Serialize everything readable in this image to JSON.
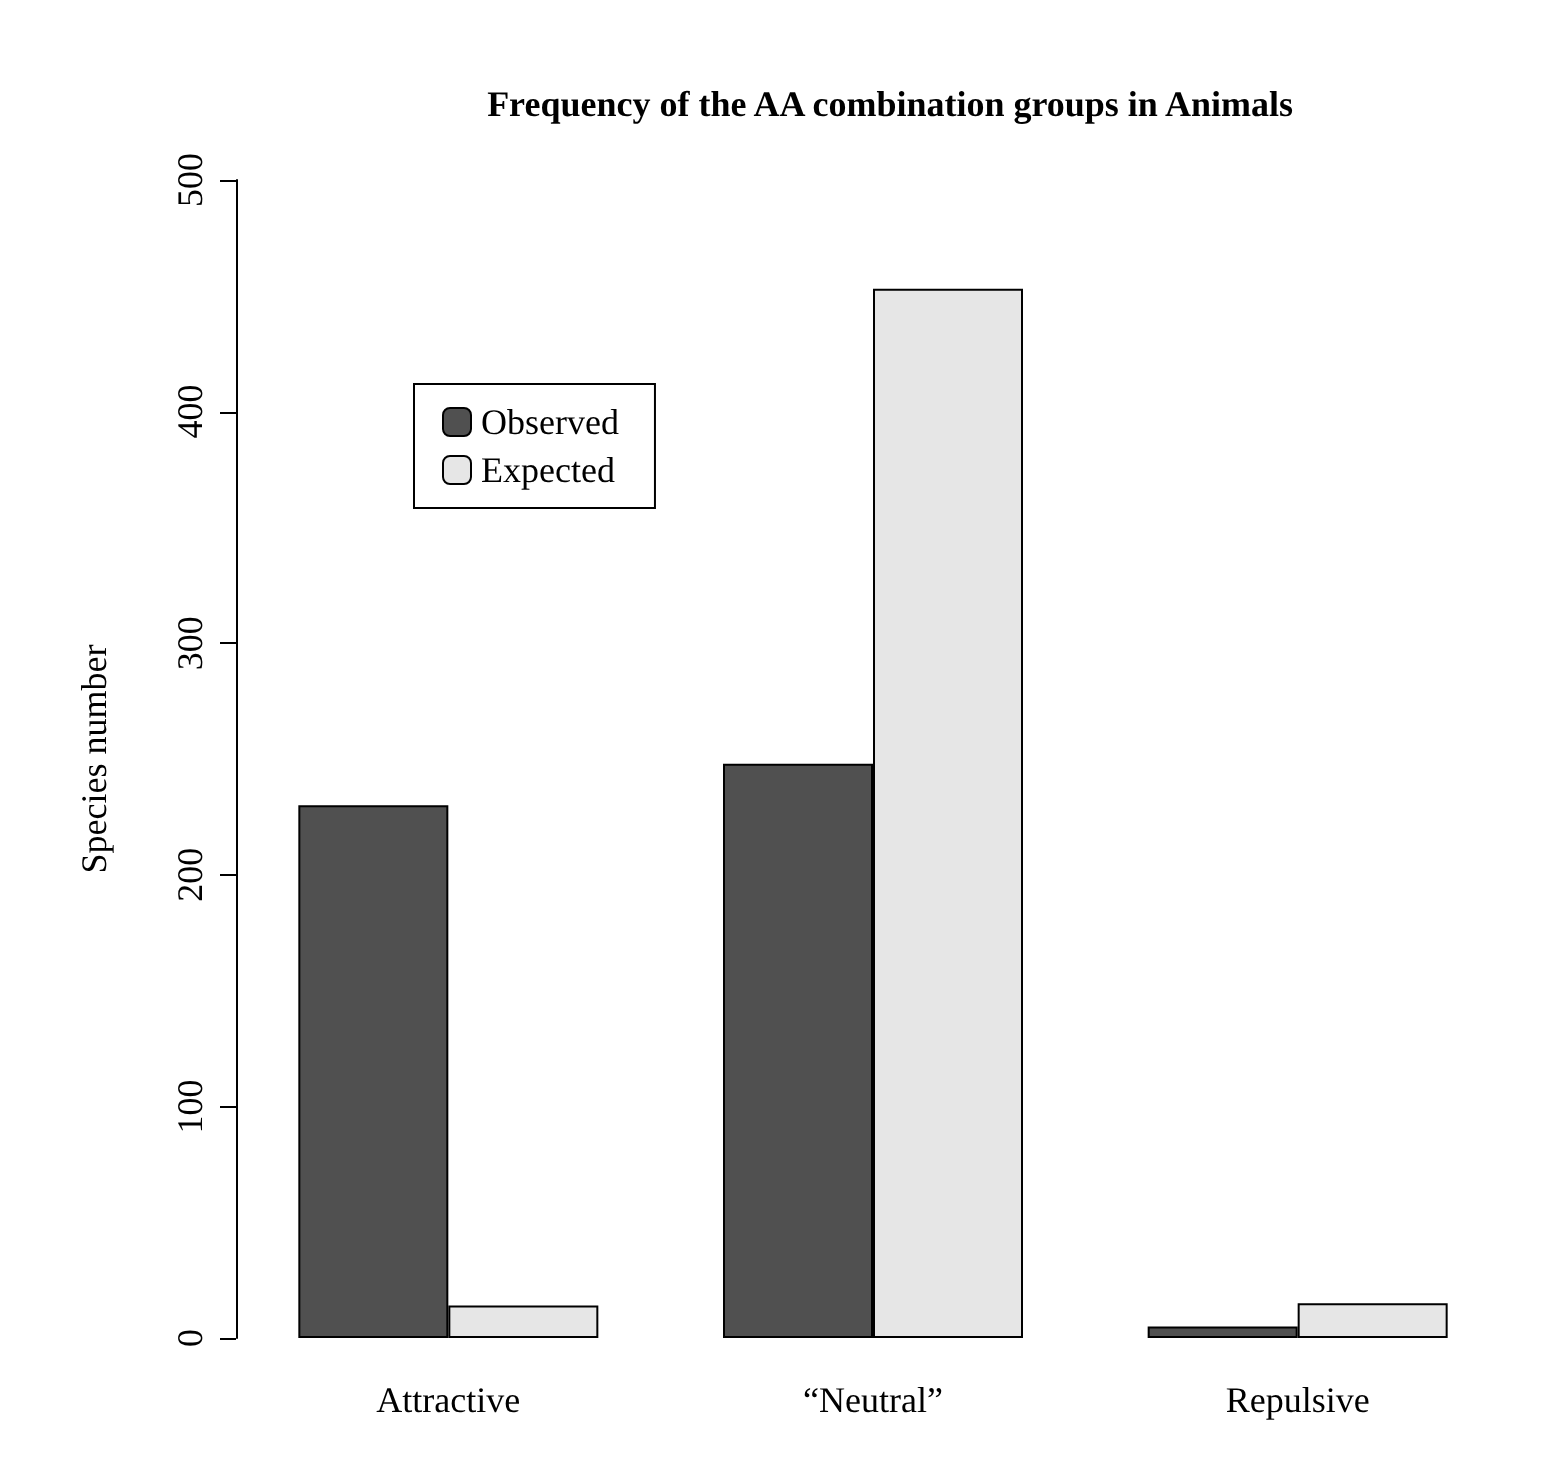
{
  "chart_data": {
    "type": "bar",
    "title": "Frequency of the AA combination groups in Animals",
    "ylabel": "Species number",
    "categories": [
      "Attractive",
      "“Neutral”",
      "Repulsive"
    ],
    "series": [
      {
        "name": "Observed",
        "color": "#505050",
        "values": [
          230,
          248,
          5
        ]
      },
      {
        "name": "Expected",
        "color": "#e6e6e6",
        "values": [
          14,
          453,
          15
        ]
      }
    ],
    "ylim": [
      0,
      500
    ],
    "yticks": [
      0,
      100,
      200,
      300,
      400,
      500
    ],
    "grid": false,
    "legend": "top left"
  }
}
